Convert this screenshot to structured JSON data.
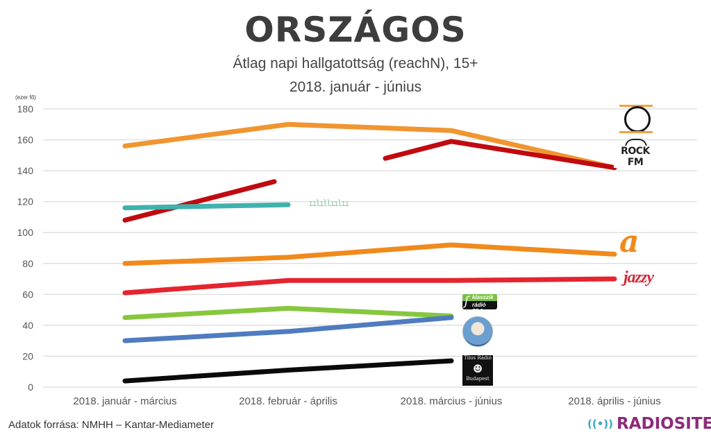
{
  "header": {
    "title": "ORSZÁGOS",
    "subtitle": "Átlag napi hallgatottság (reachN), 15+",
    "period": "2018. január - június",
    "unit_label": "(ezer fő)"
  },
  "footer": {
    "source": "Adatok forrása: NMHH – Kantar-Mediameter",
    "brand": "RADIOSITE",
    "brand_icon": "radio-waves-icon"
  },
  "logos": {
    "rock_fm": "ROCK FM",
    "jazzy": "jazzy",
    "klasszik_line1": "klasszik",
    "klasszik_line2": "rádió 92.1",
    "tilos_line1": "Tilos Rádió",
    "tilos_line2": "Budapest",
    "music_fm": "ıılıllıılıı"
  },
  "chart_data": {
    "type": "line",
    "title": "ORSZÁGOS",
    "subtitle": "Átlag napi hallgatottság (reachN), 15+ — 2018. január - június",
    "xlabel": "",
    "ylabel": "(ezer fő)",
    "ylim": [
      0,
      180
    ],
    "yticks": [
      0,
      20,
      40,
      60,
      80,
      100,
      120,
      140,
      160,
      180
    ],
    "grid": true,
    "legend": "logos at line ends (right)",
    "categories": [
      "2018. január - március",
      "2018. február - április",
      "2018. március - június",
      "2018. április - június"
    ],
    "series": [
      {
        "name": "Retro Rádió",
        "color": "#f0952f",
        "values": [
          156,
          170,
          166,
          142
        ]
      },
      {
        "name": "Rock FM",
        "color": "#c00a0f",
        "values": [
          108,
          null,
          159,
          142
        ],
        "faded_segment": [
          1,
          2
        ]
      },
      {
        "name": "Music FM",
        "color": "#3fb2ae",
        "values": [
          116,
          118,
          null,
          null
        ]
      },
      {
        "name": "Rádió 1",
        "color": "#f08a1c",
        "values": [
          80,
          84,
          92,
          86
        ]
      },
      {
        "name": "Jazzy Rádió",
        "color": "#e4252f",
        "values": [
          61,
          69,
          69,
          70
        ]
      },
      {
        "name": "Klasszik Rádió",
        "color": "#86c73e",
        "values": [
          45,
          51,
          46,
          null
        ]
      },
      {
        "name": "Mária Rádió",
        "color": "#4f7bbf",
        "values": [
          30,
          36,
          45,
          null
        ]
      },
      {
        "name": "Tilos Rádió",
        "color": "#0a0a0a",
        "values": [
          4,
          11,
          17,
          null
        ]
      }
    ]
  }
}
